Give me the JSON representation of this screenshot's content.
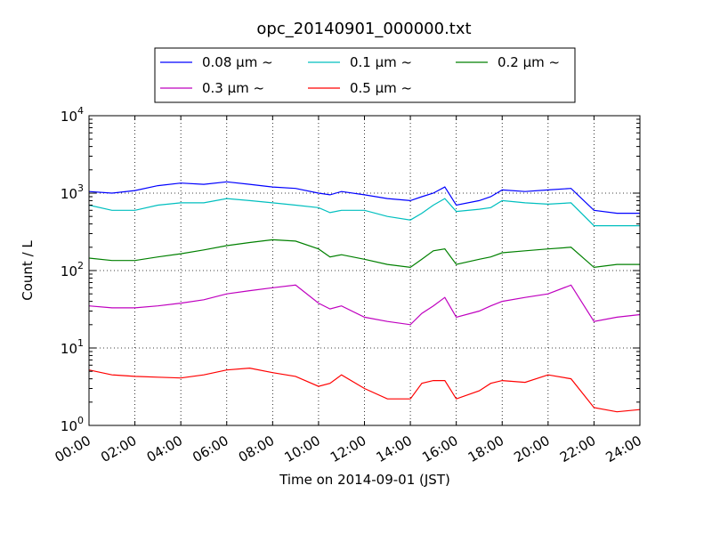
{
  "chart_data": {
    "type": "line",
    "title": "opc_20140901_000000.txt",
    "xlabel": "Time on 2014-09-01 (JST)",
    "ylabel": "Count / L",
    "x_unit": "hours",
    "xlim": [
      0,
      24
    ],
    "ylim": [
      1,
      10000
    ],
    "y_scale": "log",
    "grid": true,
    "legend_position": "top-center",
    "x_ticks": [
      "00:00",
      "02:00",
      "04:00",
      "06:00",
      "08:00",
      "10:00",
      "12:00",
      "14:00",
      "16:00",
      "18:00",
      "20:00",
      "22:00",
      "24:00"
    ],
    "y_ticks": [
      {
        "base": "10",
        "exp": "0"
      },
      {
        "base": "10",
        "exp": "1"
      },
      {
        "base": "10",
        "exp": "2"
      },
      {
        "base": "10",
        "exp": "3"
      },
      {
        "base": "10",
        "exp": "4"
      }
    ],
    "x": [
      0,
      1,
      2,
      3,
      4,
      5,
      6,
      7,
      8,
      9,
      10,
      10.5,
      11,
      12,
      13,
      14,
      14.5,
      15,
      15.5,
      16,
      17,
      17.5,
      18,
      19,
      20,
      21,
      22,
      23,
      24
    ],
    "series": [
      {
        "name": "0.08 μm ~",
        "color": "#0000ff",
        "values": [
          1050,
          1000,
          1080,
          1250,
          1350,
          1300,
          1400,
          1300,
          1200,
          1150,
          1000,
          950,
          1050,
          950,
          850,
          800,
          900,
          1000,
          1200,
          700,
          800,
          900,
          1100,
          1050,
          1100,
          1150,
          600,
          550,
          550
        ]
      },
      {
        "name": "0.1 μm ~",
        "color": "#00bfbf",
        "values": [
          700,
          600,
          600,
          700,
          750,
          750,
          850,
          800,
          750,
          700,
          650,
          560,
          600,
          600,
          500,
          450,
          550,
          700,
          850,
          580,
          620,
          650,
          800,
          750,
          720,
          750,
          380,
          380,
          380
        ]
      },
      {
        "name": "0.2 μm ~",
        "color": "#008000",
        "values": [
          145,
          135,
          135,
          150,
          165,
          185,
          210,
          230,
          250,
          240,
          190,
          150,
          160,
          140,
          120,
          110,
          140,
          180,
          190,
          120,
          140,
          150,
          170,
          180,
          190,
          200,
          110,
          120,
          120
        ]
      },
      {
        "name": "0.3 μm ~",
        "color": "#bf00bf",
        "values": [
          35,
          33,
          33,
          35,
          38,
          42,
          50,
          55,
          60,
          65,
          38,
          32,
          35,
          25,
          22,
          20,
          28,
          35,
          45,
          25,
          30,
          35,
          40,
          45,
          50,
          65,
          22,
          25,
          27
        ]
      },
      {
        "name": "0.5 μm ~",
        "color": "#ff0000",
        "values": [
          5.2,
          4.5,
          4.3,
          4.2,
          4.1,
          4.5,
          5.2,
          5.5,
          4.8,
          4.3,
          3.2,
          3.5,
          4.5,
          3,
          2.2,
          2.2,
          3.5,
          3.8,
          3.8,
          2.2,
          2.8,
          3.5,
          3.8,
          3.6,
          4.5,
          4,
          1.7,
          1.5,
          1.6
        ]
      }
    ]
  }
}
